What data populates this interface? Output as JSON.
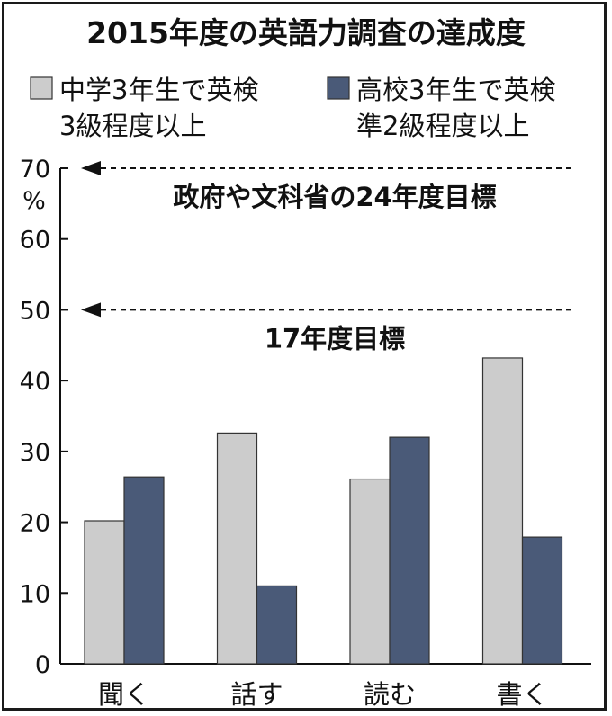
{
  "chart_data": {
    "type": "bar",
    "title": "2015年度の英語力調査の達成度",
    "unit_label": "%",
    "categories": [
      "聞く",
      "話す",
      "読む",
      "書く"
    ],
    "series": [
      {
        "name_lines": [
          "中学3年生で英検",
          "3級程度以上"
        ],
        "values": [
          20.2,
          32.6,
          26.1,
          43.2
        ],
        "color": "#cccccc"
      },
      {
        "name_lines": [
          "高校3年生で英検",
          "準2級程度以上"
        ],
        "values": [
          26.4,
          11.0,
          32.0,
          17.9
        ],
        "color": "#4a5a78"
      }
    ],
    "ylim": [
      0,
      70
    ],
    "yticks": [
      0,
      10,
      20,
      30,
      40,
      50,
      60,
      70
    ],
    "grid": false,
    "legend_position": "top",
    "targets": [
      {
        "value": 70,
        "label": "政府や文科省の24年度目標"
      },
      {
        "value": 50,
        "label": "17年度目標"
      }
    ]
  }
}
